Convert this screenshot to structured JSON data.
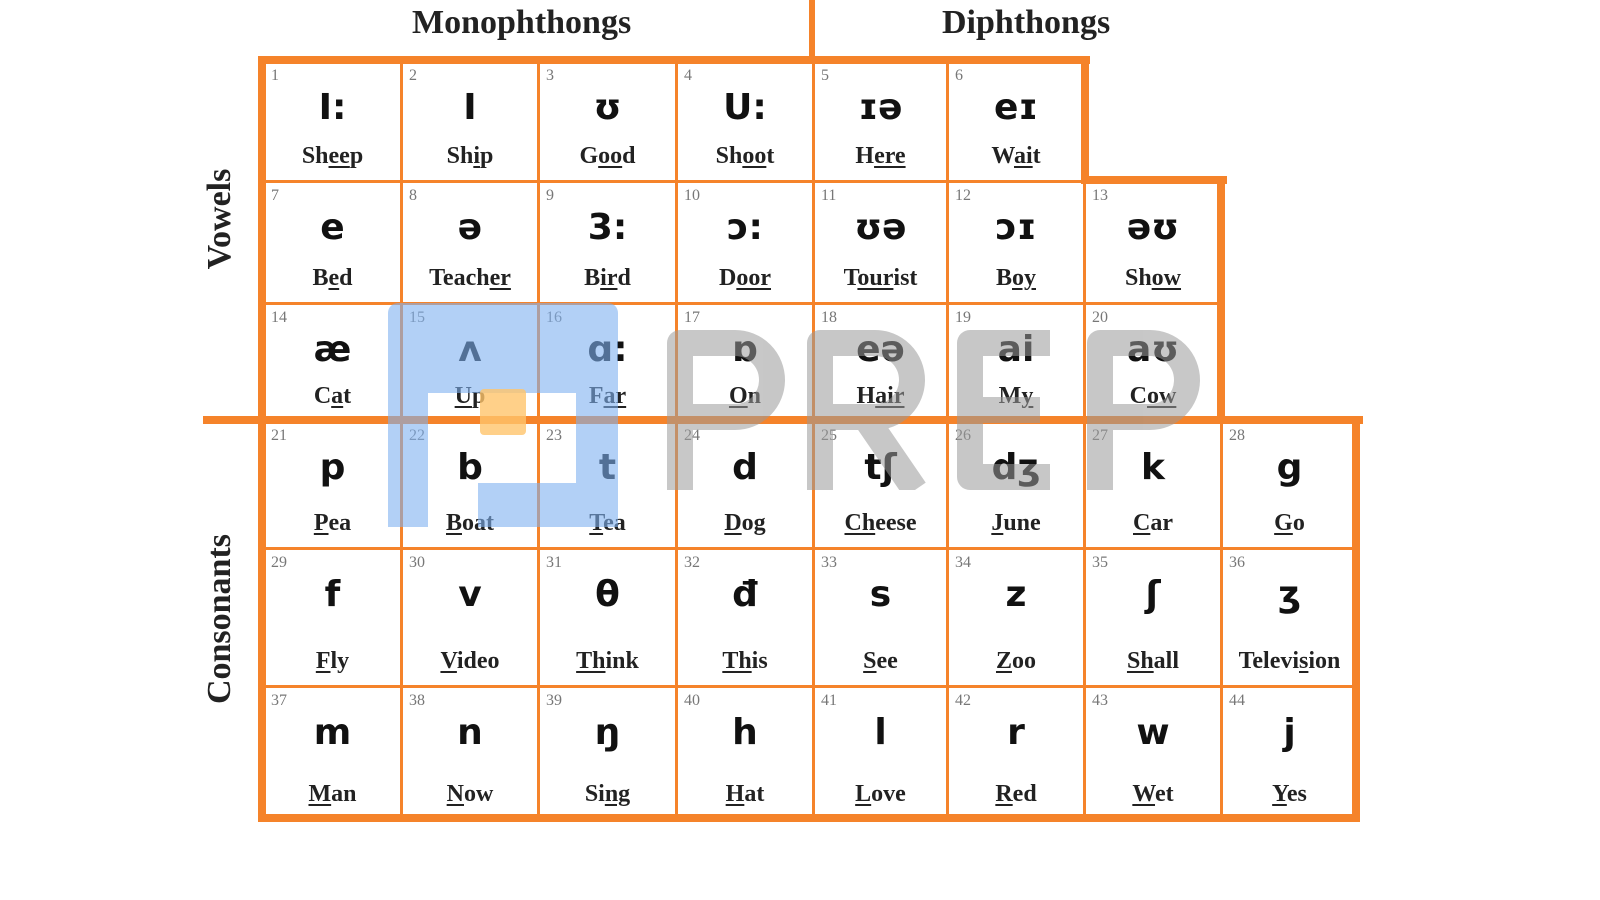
{
  "headings": {
    "monophthongs": "Monophthongs",
    "diphthongs": "Diphthongs",
    "vowels": "Vowels",
    "consonants": "Consonants"
  },
  "colors": {
    "border": "#f5832a",
    "watermark_blue": "#7fb0f0",
    "watermark_orange": "#ffc46b",
    "watermark_gray": "#9a9a9a"
  },
  "watermark": "PREP",
  "vowels": [
    [
      {
        "num": "1",
        "symbol": "I:",
        "word": [
          "Sh",
          "ee",
          "p"
        ]
      },
      {
        "num": "2",
        "symbol": "I",
        "word": [
          "Sh",
          "i",
          "p"
        ]
      },
      {
        "num": "3",
        "symbol": "ʊ",
        "word": [
          "G",
          "oo",
          "d"
        ]
      },
      {
        "num": "4",
        "symbol": "U:",
        "word": [
          "Sh",
          "oo",
          "t"
        ]
      },
      {
        "num": "5",
        "symbol": "ɪə",
        "word": [
          "H",
          "ere",
          ""
        ]
      },
      {
        "num": "6",
        "symbol": "eɪ",
        "word": [
          "W",
          "ai",
          "t"
        ]
      }
    ],
    [
      {
        "num": "7",
        "symbol": "e",
        "word": [
          "B",
          "e",
          "d"
        ]
      },
      {
        "num": "8",
        "symbol": "ə",
        "word": [
          "Teach",
          "er",
          ""
        ]
      },
      {
        "num": "9",
        "symbol": "3:",
        "word": [
          "B",
          "ir",
          "d"
        ]
      },
      {
        "num": "10",
        "symbol": "ɔ:",
        "word": [
          "D",
          "oor",
          ""
        ]
      },
      {
        "num": "11",
        "symbol": "ʊə",
        "word": [
          "T",
          "our",
          "ist"
        ]
      },
      {
        "num": "12",
        "symbol": "ɔɪ",
        "word": [
          "B",
          "oy",
          ""
        ]
      },
      {
        "num": "13",
        "symbol": "əʊ",
        "word": [
          "Sh",
          "ow",
          ""
        ]
      }
    ],
    [
      {
        "num": "14",
        "symbol": "æ",
        "word": [
          "C",
          "a",
          "t"
        ]
      },
      {
        "num": "15",
        "symbol": "ʌ",
        "word": [
          "",
          "U",
          "p"
        ]
      },
      {
        "num": "16",
        "symbol": "ɑ:",
        "word": [
          "F",
          "ar",
          ""
        ]
      },
      {
        "num": "17",
        "symbol": "ɒ",
        "word": [
          "",
          "O",
          "n"
        ]
      },
      {
        "num": "18",
        "symbol": "eə",
        "word": [
          "H",
          "air",
          ""
        ]
      },
      {
        "num": "19",
        "symbol": "ai",
        "word": [
          "M",
          "y",
          ""
        ]
      },
      {
        "num": "20",
        "symbol": "aʊ",
        "word": [
          "C",
          "ow",
          ""
        ]
      }
    ]
  ],
  "consonants": [
    [
      {
        "num": "21",
        "symbol": "p",
        "word": [
          "",
          "P",
          "ea"
        ]
      },
      {
        "num": "22",
        "symbol": "b",
        "word": [
          "",
          "B",
          "oat"
        ]
      },
      {
        "num": "23",
        "symbol": "t",
        "word": [
          "",
          "T",
          "ea"
        ]
      },
      {
        "num": "24",
        "symbol": "d",
        "word": [
          "",
          "D",
          "og"
        ]
      },
      {
        "num": "25",
        "symbol": "tʃ",
        "word": [
          "",
          "Ch",
          "eese"
        ]
      },
      {
        "num": "26",
        "symbol": "dʒ",
        "word": [
          "",
          "J",
          "une"
        ]
      },
      {
        "num": "27",
        "symbol": "k",
        "word": [
          "",
          "C",
          "ar"
        ]
      },
      {
        "num": "28",
        "symbol": "g",
        "word": [
          "",
          "G",
          "o"
        ]
      }
    ],
    [
      {
        "num": "29",
        "symbol": "f",
        "word": [
          "",
          "F",
          "ly"
        ]
      },
      {
        "num": "30",
        "symbol": "v",
        "word": [
          "",
          "V",
          "ideo"
        ]
      },
      {
        "num": "31",
        "symbol": "θ",
        "word": [
          "",
          "Th",
          "ink"
        ]
      },
      {
        "num": "32",
        "symbol": "đ",
        "word": [
          "",
          "Th",
          "is"
        ]
      },
      {
        "num": "33",
        "symbol": "s",
        "word": [
          "",
          "S",
          "ee"
        ]
      },
      {
        "num": "34",
        "symbol": "z",
        "word": [
          "",
          "Z",
          "oo"
        ]
      },
      {
        "num": "35",
        "symbol": "ʃ",
        "word": [
          "",
          "Sh",
          "all"
        ]
      },
      {
        "num": "36",
        "symbol": "ʒ",
        "word": [
          "Televi",
          "s",
          "ion"
        ]
      }
    ],
    [
      {
        "num": "37",
        "symbol": "m",
        "word": [
          "",
          "M",
          "an"
        ]
      },
      {
        "num": "38",
        "symbol": "n",
        "word": [
          "",
          "N",
          "ow"
        ]
      },
      {
        "num": "39",
        "symbol": "ŋ",
        "word": [
          "Si",
          "ng",
          ""
        ]
      },
      {
        "num": "40",
        "symbol": "h",
        "word": [
          "",
          "H",
          "at"
        ]
      },
      {
        "num": "41",
        "symbol": "l",
        "word": [
          "",
          "L",
          "ove"
        ]
      },
      {
        "num": "42",
        "symbol": "r",
        "word": [
          "",
          "R",
          "ed"
        ]
      },
      {
        "num": "43",
        "symbol": "w",
        "word": [
          "",
          "W",
          "et"
        ]
      },
      {
        "num": "44",
        "symbol": "j",
        "word": [
          "",
          "Y",
          "es"
        ]
      }
    ]
  ]
}
